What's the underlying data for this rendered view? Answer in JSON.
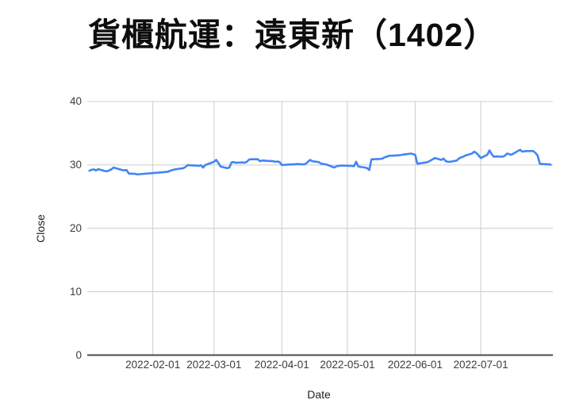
{
  "title": "貨櫃航運：遠東新（1402）",
  "chart_data": {
    "type": "line",
    "title": "貨櫃航運：遠東新（1402）",
    "xlabel": "Date",
    "ylabel": "Close",
    "ylim": [
      0,
      40
    ],
    "yticks": [
      0,
      10,
      20,
      30,
      40
    ],
    "x_domain": [
      "2022-01-02",
      "2022-08-03"
    ],
    "xticks": [
      {
        "date": "2022-02-01",
        "label": "2022-02-01"
      },
      {
        "date": "2022-03-01",
        "label": "2022-03-01"
      },
      {
        "date": "2022-04-01",
        "label": "2022-04-01"
      },
      {
        "date": "2022-05-01",
        "label": "2022-05-01"
      },
      {
        "date": "2022-06-01",
        "label": "2022-06-01"
      },
      {
        "date": "2022-07-01",
        "label": "2022-07-01"
      }
    ],
    "grid": true,
    "legend_position": "none",
    "line_color": "#4285F4",
    "grid_color": "#cccccc",
    "baseline_color": "#4a4a4a",
    "series": [
      {
        "name": "Close",
        "points": [
          [
            "2022-01-03",
            29.1
          ],
          [
            "2022-01-04",
            29.25
          ],
          [
            "2022-01-05",
            29.3
          ],
          [
            "2022-01-06",
            29.15
          ],
          [
            "2022-01-07",
            29.35
          ],
          [
            "2022-01-10",
            29.05
          ],
          [
            "2022-01-11",
            29.0
          ],
          [
            "2022-01-12",
            29.15
          ],
          [
            "2022-01-13",
            29.3
          ],
          [
            "2022-01-14",
            29.6
          ],
          [
            "2022-01-17",
            29.3
          ],
          [
            "2022-01-18",
            29.2
          ],
          [
            "2022-01-19",
            29.15
          ],
          [
            "2022-01-20",
            29.2
          ],
          [
            "2022-01-21",
            28.65
          ],
          [
            "2022-01-24",
            28.6
          ],
          [
            "2022-01-25",
            28.5
          ],
          [
            "2022-01-26",
            28.55
          ],
          [
            "2022-02-07",
            28.9
          ],
          [
            "2022-02-08",
            28.95
          ],
          [
            "2022-02-09",
            29.1
          ],
          [
            "2022-02-10",
            29.2
          ],
          [
            "2022-02-11",
            29.3
          ],
          [
            "2022-02-14",
            29.45
          ],
          [
            "2022-02-15",
            29.5
          ],
          [
            "2022-02-16",
            29.7
          ],
          [
            "2022-02-17",
            30.0
          ],
          [
            "2022-02-18",
            29.95
          ],
          [
            "2022-02-21",
            29.9
          ],
          [
            "2022-02-22",
            29.85
          ],
          [
            "2022-02-23",
            29.95
          ],
          [
            "2022-02-24",
            29.6
          ],
          [
            "2022-02-25",
            30.0
          ],
          [
            "2022-03-01",
            30.5
          ],
          [
            "2022-03-02",
            30.8
          ],
          [
            "2022-03-03",
            30.3
          ],
          [
            "2022-03-04",
            29.75
          ],
          [
            "2022-03-07",
            29.5
          ],
          [
            "2022-03-08",
            29.6
          ],
          [
            "2022-03-09",
            30.4
          ],
          [
            "2022-03-10",
            30.45
          ],
          [
            "2022-03-11",
            30.35
          ],
          [
            "2022-03-14",
            30.4
          ],
          [
            "2022-03-15",
            30.35
          ],
          [
            "2022-03-16",
            30.5
          ],
          [
            "2022-03-17",
            30.85
          ],
          [
            "2022-03-18",
            30.9
          ],
          [
            "2022-03-21",
            30.9
          ],
          [
            "2022-03-22",
            30.6
          ],
          [
            "2022-03-23",
            30.7
          ],
          [
            "2022-03-24",
            30.7
          ],
          [
            "2022-03-25",
            30.65
          ],
          [
            "2022-03-28",
            30.6
          ],
          [
            "2022-03-29",
            30.5
          ],
          [
            "2022-03-30",
            30.55
          ],
          [
            "2022-03-31",
            30.45
          ],
          [
            "2022-04-01",
            30.0
          ],
          [
            "2022-04-06",
            30.1
          ],
          [
            "2022-04-07",
            30.1
          ],
          [
            "2022-04-08",
            30.15
          ],
          [
            "2022-04-11",
            30.1
          ],
          [
            "2022-04-12",
            30.2
          ],
          [
            "2022-04-13",
            30.5
          ],
          [
            "2022-04-14",
            30.8
          ],
          [
            "2022-04-15",
            30.6
          ],
          [
            "2022-04-18",
            30.45
          ],
          [
            "2022-04-19",
            30.2
          ],
          [
            "2022-04-20",
            30.15
          ],
          [
            "2022-04-21",
            30.1
          ],
          [
            "2022-04-22",
            30.0
          ],
          [
            "2022-04-25",
            29.6
          ],
          [
            "2022-04-26",
            29.8
          ],
          [
            "2022-04-27",
            29.85
          ],
          [
            "2022-04-28",
            29.9
          ],
          [
            "2022-04-29",
            29.9
          ],
          [
            "2022-05-03",
            29.85
          ],
          [
            "2022-05-04",
            29.8
          ],
          [
            "2022-05-05",
            30.5
          ],
          [
            "2022-05-06",
            29.75
          ],
          [
            "2022-05-09",
            29.6
          ],
          [
            "2022-05-10",
            29.5
          ],
          [
            "2022-05-11",
            29.2
          ],
          [
            "2022-05-12",
            30.9
          ],
          [
            "2022-05-13",
            30.9
          ],
          [
            "2022-05-16",
            30.95
          ],
          [
            "2022-05-17",
            31.0
          ],
          [
            "2022-05-18",
            31.2
          ],
          [
            "2022-05-19",
            31.3
          ],
          [
            "2022-05-20",
            31.45
          ],
          [
            "2022-05-23",
            31.5
          ],
          [
            "2022-05-24",
            31.5
          ],
          [
            "2022-05-25",
            31.55
          ],
          [
            "2022-05-26",
            31.6
          ],
          [
            "2022-05-27",
            31.65
          ],
          [
            "2022-05-30",
            31.8
          ],
          [
            "2022-05-31",
            31.7
          ],
          [
            "2022-06-01",
            31.6
          ],
          [
            "2022-06-02",
            30.2
          ],
          [
            "2022-06-06",
            30.4
          ],
          [
            "2022-06-07",
            30.5
          ],
          [
            "2022-06-08",
            30.7
          ],
          [
            "2022-06-09",
            30.9
          ],
          [
            "2022-06-10",
            31.1
          ],
          [
            "2022-06-13",
            30.8
          ],
          [
            "2022-06-14",
            31.0
          ],
          [
            "2022-06-15",
            30.6
          ],
          [
            "2022-06-16",
            30.5
          ],
          [
            "2022-06-17",
            30.5
          ],
          [
            "2022-06-20",
            30.7
          ],
          [
            "2022-06-21",
            31.0
          ],
          [
            "2022-06-22",
            31.2
          ],
          [
            "2022-06-23",
            31.3
          ],
          [
            "2022-06-24",
            31.5
          ],
          [
            "2022-06-27",
            31.8
          ],
          [
            "2022-06-28",
            32.1
          ],
          [
            "2022-06-29",
            31.9
          ],
          [
            "2022-06-30",
            31.5
          ],
          [
            "2022-07-01",
            31.1
          ],
          [
            "2022-07-04",
            31.6
          ],
          [
            "2022-07-05",
            32.3
          ],
          [
            "2022-07-06",
            31.7
          ],
          [
            "2022-07-07",
            31.3
          ],
          [
            "2022-07-08",
            31.35
          ],
          [
            "2022-07-11",
            31.3
          ],
          [
            "2022-07-12",
            31.45
          ],
          [
            "2022-07-13",
            31.8
          ],
          [
            "2022-07-14",
            31.7
          ],
          [
            "2022-07-15",
            31.6
          ],
          [
            "2022-07-18",
            32.2
          ],
          [
            "2022-07-19",
            32.4
          ],
          [
            "2022-07-20",
            32.1
          ],
          [
            "2022-07-21",
            32.15
          ],
          [
            "2022-07-22",
            32.2
          ],
          [
            "2022-07-25",
            32.2
          ],
          [
            "2022-07-26",
            31.9
          ],
          [
            "2022-07-27",
            31.5
          ],
          [
            "2022-07-28",
            30.2
          ],
          [
            "2022-07-29",
            30.15
          ],
          [
            "2022-08-01",
            30.1
          ],
          [
            "2022-08-02",
            30.05
          ]
        ]
      }
    ]
  }
}
